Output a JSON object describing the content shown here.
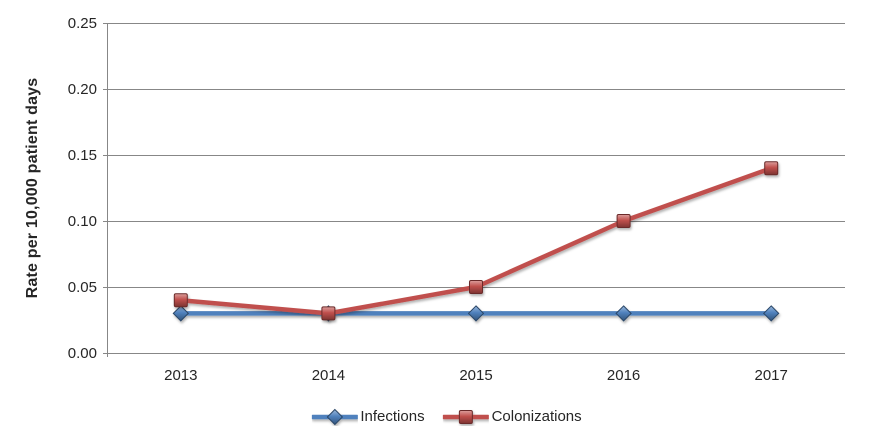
{
  "chart_data": {
    "type": "line",
    "title": "",
    "xlabel": "",
    "ylabel": "Rate per 10,000 patient days",
    "categories": [
      "2013",
      "2014",
      "2015",
      "2016",
      "2017"
    ],
    "series": [
      {
        "name": "Infections",
        "color": "#4F81BD",
        "marker": "diamond",
        "values": [
          0.03,
          0.03,
          0.03,
          0.03,
          0.03
        ]
      },
      {
        "name": "Colonizations",
        "color": "#C0504D",
        "marker": "square",
        "values": [
          0.04,
          0.03,
          0.05,
          0.1,
          0.14
        ]
      }
    ],
    "ylim": [
      0,
      0.25
    ],
    "ytick_step": 0.05,
    "ytick_labels": [
      "0.00",
      "0.05",
      "0.10",
      "0.15",
      "0.20",
      "0.25"
    ],
    "grid": true,
    "legend_position": "bottom",
    "colors": {
      "gridline": "#878787",
      "axis": "#878787",
      "tick_text": "#262626",
      "background": "#FFFFFF"
    }
  }
}
